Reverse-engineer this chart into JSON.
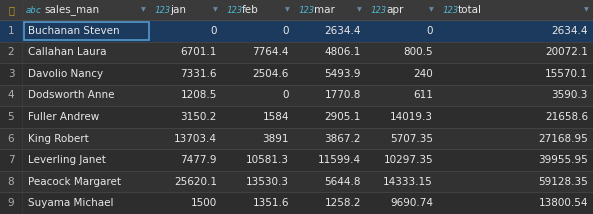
{
  "columns": [
    "sales_man",
    "jan",
    "feb",
    "mar",
    "apr",
    "total"
  ],
  "col_types_abc": [
    "abc",
    "123",
    "123",
    "123",
    "123",
    "123"
  ],
  "rows": [
    [
      "Buchanan Steven",
      "0",
      "0",
      "2634.4",
      "0",
      "2634.4"
    ],
    [
      "Callahan Laura",
      "6701.1",
      "7764.4",
      "4806.1",
      "800.5",
      "20072.1"
    ],
    [
      "Davolio Nancy",
      "7331.6",
      "2504.6",
      "5493.9",
      "240",
      "15570.1"
    ],
    [
      "Dodsworth Anne",
      "1208.5",
      "0",
      "1770.8",
      "611",
      "3590.3"
    ],
    [
      "Fuller Andrew",
      "3150.2",
      "1584",
      "2905.1",
      "14019.3",
      "21658.6"
    ],
    [
      "King Robert",
      "13703.4",
      "3891",
      "3867.2",
      "5707.35",
      "27168.95"
    ],
    [
      "Leverling Janet",
      "7477.9",
      "10581.3",
      "11599.4",
      "10297.35",
      "39955.95"
    ],
    [
      "Peacock Margaret",
      "25620.1",
      "13530.3",
      "5644.8",
      "14333.15",
      "59128.35"
    ],
    [
      "Suyama Michael",
      "1500",
      "1351.6",
      "1258.2",
      "9690.74",
      "13800.54"
    ]
  ],
  "row_indices": [
    "1",
    "2",
    "3",
    "4",
    "5",
    "6",
    "7",
    "8",
    "9"
  ],
  "bg_dark": "#2d2d2d",
  "bg_header": "#3a3a3a",
  "bg_row_alt": "#323232",
  "bg_selected": "#1c3a5e",
  "text_color": "#e8e8e8",
  "text_color_type": "#4db8d4",
  "text_color_idx": "#b0b0b0",
  "border_color": "#4a4a4a",
  "sel_border_color": "#5599cc",
  "arrow_color": "#6a8aaa",
  "lock_color": "#c8a020",
  "font_size": 7.5,
  "header_font_size": 7.5,
  "type_font_size": 6.5
}
